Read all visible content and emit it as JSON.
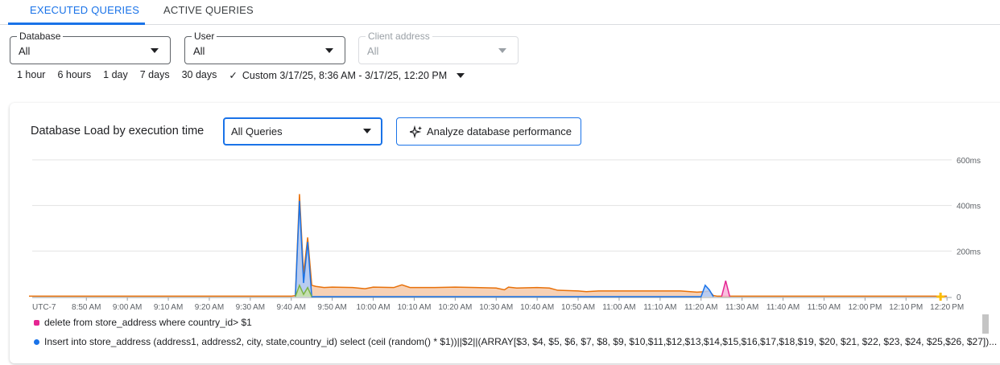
{
  "tabs": [
    {
      "label": "EXECUTED QUERIES",
      "active": true
    },
    {
      "label": "ACTIVE QUERIES",
      "active": false
    }
  ],
  "filters": {
    "database": {
      "label": "Database",
      "value": "All"
    },
    "user": {
      "label": "User",
      "value": "All"
    },
    "client_address": {
      "label": "Client address",
      "value": "All",
      "disabled": true
    }
  },
  "time_ranges": [
    "1 hour",
    "6 hours",
    "1 day",
    "7 days",
    "30 days"
  ],
  "custom_range": {
    "check_icon": "checkmark",
    "label": "Custom 3/17/25, 8:36 AM - 3/17/25, 12:20 PM",
    "selected": true
  },
  "panel": {
    "title": "Database Load by execution time",
    "query_select": "All Queries",
    "analyze_button": "Analyze database performance",
    "analyze_icon": "sparkle-icon"
  },
  "chart_data": {
    "type": "area",
    "timezone": "UTC-7",
    "xlim": [
      "8:36",
      "12:20"
    ],
    "x_ticks": [
      "8:50 AM",
      "9:00 AM",
      "9:10 AM",
      "9:20 AM",
      "9:30 AM",
      "9:40 AM",
      "9:50 AM",
      "10:00 AM",
      "10:10 AM",
      "10:20 AM",
      "10:30 AM",
      "10:40 AM",
      "10:50 AM",
      "11:00 AM",
      "11:10 AM",
      "11:20 AM",
      "11:30 AM",
      "11:40 AM",
      "11:50 AM",
      "12:00 PM",
      "12:10 PM",
      "12:20 PM"
    ],
    "y_ticks": [
      "0",
      "200ms",
      "400ms",
      "600ms"
    ],
    "ylim": [
      0,
      600
    ],
    "grid": true,
    "series": [
      {
        "color": "#e8710a",
        "fill": "#f6c9a8",
        "points": [
          [
            "8:36",
            2
          ],
          [
            "9:40",
            2
          ],
          [
            "9:41",
            5
          ],
          [
            "9:42",
            450
          ],
          [
            "9:43",
            100
          ],
          [
            "9:44",
            260
          ],
          [
            "9:45",
            50
          ],
          [
            "9:46",
            45
          ],
          [
            "9:48",
            40
          ],
          [
            "9:50",
            42
          ],
          [
            "9:55",
            40
          ],
          [
            "9:58",
            35
          ],
          [
            "10:00",
            42
          ],
          [
            "10:05",
            40
          ],
          [
            "10:07",
            52
          ],
          [
            "10:09",
            40
          ],
          [
            "10:15",
            40
          ],
          [
            "10:20",
            42
          ],
          [
            "10:25",
            40
          ],
          [
            "10:30",
            38
          ],
          [
            "10:32",
            30
          ],
          [
            "10:33",
            42
          ],
          [
            "10:35",
            38
          ],
          [
            "10:40",
            40
          ],
          [
            "10:43",
            38
          ],
          [
            "10:45",
            28
          ],
          [
            "10:50",
            25
          ],
          [
            "10:52",
            22
          ],
          [
            "10:55",
            25
          ],
          [
            "11:00",
            25
          ],
          [
            "11:15",
            25
          ],
          [
            "11:19",
            20
          ],
          [
            "11:21",
            22
          ],
          [
            "11:22",
            25
          ],
          [
            "11:23",
            5
          ],
          [
            "11:24",
            2
          ],
          [
            "12:20",
            2
          ]
        ]
      },
      {
        "name": "Insert into store_address (address1, address2, city, state,country_id) select (ceil (random() * $1))||$2||(ARRAY[$3, $4, $5, $6, $7, $8, $9, $10,$11,$12,$13,$14,$15,$16,$17,$18,$19, $20, $21, $22, $23, $24, $25,$26, $27])...",
        "color": "#1a73e8",
        "fill": "#aecbfa",
        "points": [
          [
            "9:41",
            0
          ],
          [
            "9:42",
            420
          ],
          [
            "9:43",
            60
          ],
          [
            "9:44",
            240
          ],
          [
            "9:45",
            0
          ],
          [
            "11:20",
            0
          ],
          [
            "11:21",
            50
          ],
          [
            "11:22",
            30
          ],
          [
            "11:23",
            0
          ]
        ]
      },
      {
        "color": "#7cb342",
        "fill": "#c5e1a5",
        "points": [
          [
            "9:41",
            0
          ],
          [
            "9:42",
            50
          ],
          [
            "9:43",
            10
          ],
          [
            "9:44",
            40
          ],
          [
            "9:45",
            0
          ]
        ]
      },
      {
        "name": "delete from store_address where country_id> $1",
        "color": "#e52592",
        "fill": "#f8b4d9",
        "points": [
          [
            "11:25",
            0
          ],
          [
            "11:26",
            70
          ],
          [
            "11:27",
            0
          ]
        ]
      }
    ],
    "legend": [
      "delete from store_address where country_id> $1",
      "Insert into store_address (address1, address2, city, state,country_id) select (ceil (random() * $1))||$2||(ARRAY[$3, $4, $5, $6, $7, $8, $9, $10,$11,$12,$13,$14,$15,$16,$17,$18,$19, $20, $21, $22, $23, $24, $25,$26, $27])..."
    ],
    "legend_colors": [
      "#e52592",
      "#1a73e8"
    ]
  }
}
